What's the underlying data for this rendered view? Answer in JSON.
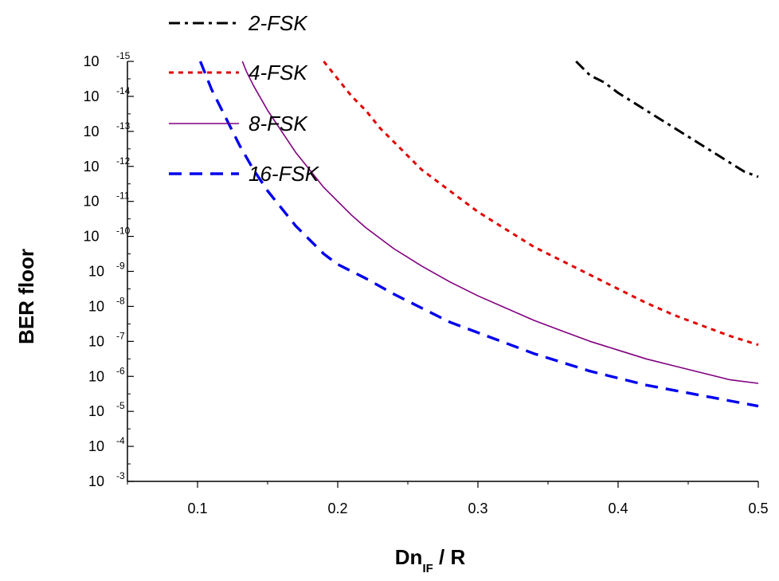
{
  "chart_data": {
    "type": "line",
    "title": "",
    "xlabel": {
      "prefix": "Dn",
      "subscript": "IF",
      "suffix": " / R"
    },
    "ylabel": "BER floor",
    "xlim": [
      0.05,
      0.5
    ],
    "ylim_exponent": [
      -15,
      -3
    ],
    "y_scale": "log",
    "grid": false,
    "legend_position": "top-center",
    "x_ticks": [
      "0.1",
      "0.2",
      "0.3",
      "0.4",
      "0.5"
    ],
    "x_tick_values": [
      0.1,
      0.2,
      0.3,
      0.4,
      0.5
    ],
    "y_tick_base": "10",
    "y_tick_exponents": [
      "-3",
      "-4",
      "-5",
      "-6",
      "-7",
      "-8",
      "-9",
      "-10",
      "-11",
      "-12",
      "-13",
      "-14",
      "-15"
    ],
    "series": [
      {
        "name": "2-FSK",
        "color": "#000000",
        "dash": "dashdot",
        "x": [
          0.37,
          0.375,
          0.38,
          0.39,
          0.4,
          0.41,
          0.42,
          0.43,
          0.44,
          0.45,
          0.46,
          0.47,
          0.48,
          0.49,
          0.5
        ],
        "log10_y": [
          -15.0,
          -14.8,
          -14.6,
          -14.4,
          -14.1,
          -13.85,
          -13.6,
          -13.35,
          -13.1,
          -12.85,
          -12.6,
          -12.35,
          -12.1,
          -11.85,
          -11.7
        ]
      },
      {
        "name": "4-FSK",
        "color": "#e00000",
        "dash": "dotted",
        "x": [
          0.19,
          0.2,
          0.21,
          0.22,
          0.23,
          0.24,
          0.25,
          0.26,
          0.27,
          0.28,
          0.3,
          0.32,
          0.34,
          0.36,
          0.38,
          0.4,
          0.42,
          0.44,
          0.46,
          0.48,
          0.5
        ],
        "log10_y": [
          -15.0,
          -14.5,
          -14.0,
          -13.6,
          -13.1,
          -12.7,
          -12.3,
          -11.9,
          -11.6,
          -11.3,
          -10.7,
          -10.2,
          -9.7,
          -9.3,
          -8.9,
          -8.5,
          -8.1,
          -7.75,
          -7.45,
          -7.15,
          -6.9
        ]
      },
      {
        "name": "8-FSK",
        "color": "#800080",
        "dash": "solid",
        "x": [
          0.132,
          0.135,
          0.14,
          0.15,
          0.16,
          0.17,
          0.18,
          0.19,
          0.2,
          0.21,
          0.22,
          0.24,
          0.26,
          0.28,
          0.3,
          0.32,
          0.34,
          0.36,
          0.38,
          0.4,
          0.42,
          0.44,
          0.46,
          0.48,
          0.5
        ],
        "log10_y": [
          -15.0,
          -14.7,
          -14.3,
          -13.6,
          -13.0,
          -12.4,
          -11.9,
          -11.4,
          -11.0,
          -10.6,
          -10.25,
          -9.65,
          -9.15,
          -8.7,
          -8.3,
          -7.95,
          -7.6,
          -7.3,
          -7.0,
          -6.75,
          -6.5,
          -6.3,
          -6.1,
          -5.9,
          -5.8
        ]
      },
      {
        "name": "16-FSK",
        "color": "#0000ee",
        "dash": "dashed",
        "x": [
          0.102,
          0.11,
          0.12,
          0.13,
          0.14,
          0.15,
          0.16,
          0.17,
          0.18,
          0.19,
          0.2,
          0.22,
          0.24,
          0.26,
          0.28,
          0.3,
          0.32,
          0.34,
          0.36,
          0.38,
          0.4,
          0.42,
          0.44,
          0.46,
          0.48,
          0.5
        ],
        "log10_y": [
          -15.0,
          -14.2,
          -13.4,
          -12.6,
          -11.9,
          -11.3,
          -10.8,
          -10.3,
          -9.9,
          -9.5,
          -9.2,
          -8.8,
          -8.35,
          -7.95,
          -7.55,
          -7.25,
          -6.95,
          -6.65,
          -6.4,
          -6.15,
          -5.95,
          -5.75,
          -5.6,
          -5.45,
          -5.3,
          -5.15
        ]
      }
    ]
  }
}
